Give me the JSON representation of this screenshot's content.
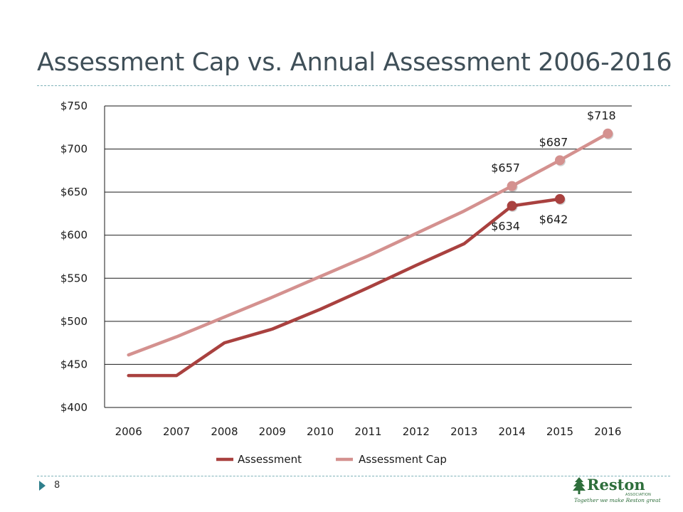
{
  "slide": {
    "title": "Assessment Cap vs. Annual Assessment 2006-2016",
    "page_number": "8"
  },
  "logo": {
    "name": "Reston",
    "association": "ASSOCIATION",
    "tagline": "Together we make Reston great"
  },
  "colors": {
    "assessment": "#a9413f",
    "assessment_cap": "#d4918f",
    "title": "#3f4f58",
    "accent": "#2f7f8c",
    "gridline": "#1a1a1a"
  },
  "chart_data": {
    "type": "line",
    "title": "",
    "xlabel": "",
    "ylabel": "",
    "ylim": [
      400,
      750
    ],
    "y_ticks": [
      "$400",
      "$450",
      "$500",
      "$550",
      "$600",
      "$650",
      "$700",
      "$750"
    ],
    "categories": [
      "2006",
      "2007",
      "2008",
      "2009",
      "2010",
      "2011",
      "2012",
      "2013",
      "2014",
      "2015",
      "2016"
    ],
    "grid": true,
    "legend_position": "bottom",
    "series": [
      {
        "name": "Assessment",
        "color": "#a9413f",
        "values": [
          437,
          437,
          475,
          491,
          514,
          539,
          565,
          590,
          634,
          642,
          null
        ],
        "labels": [
          {
            "index": 8,
            "text": "$634",
            "position": "below"
          },
          {
            "index": 9,
            "text": "$642",
            "position": "below"
          }
        ]
      },
      {
        "name": "Assessment Cap",
        "color": "#d4918f",
        "values": [
          461,
          482,
          505,
          528,
          552,
          576,
          602,
          628,
          657,
          687,
          718
        ],
        "labels": [
          {
            "index": 8,
            "text": "$657",
            "position": "above"
          },
          {
            "index": 9,
            "text": "$687",
            "position": "above"
          },
          {
            "index": 10,
            "text": "$718",
            "position": "above"
          }
        ]
      }
    ]
  }
}
